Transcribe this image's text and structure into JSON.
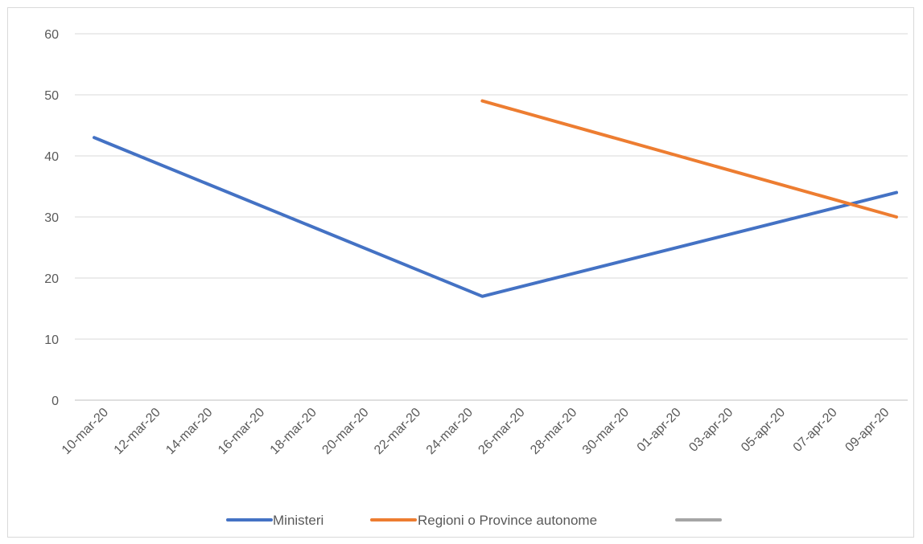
{
  "chart_data": {
    "type": "line",
    "x": [
      "2020-03-10",
      "2020-03-25",
      "2020-04-10"
    ],
    "x_tick_labels": [
      "10-mar-20",
      "12-mar-20",
      "14-mar-20",
      "16-mar-20",
      "18-mar-20",
      "20-mar-20",
      "22-mar-20",
      "24-mar-20",
      "26-mar-20",
      "28-mar-20",
      "30-mar-20",
      "01-apr-20",
      "03-apr-20",
      "05-apr-20",
      "07-apr-20",
      "09-apr-20"
    ],
    "y_tick_labels": [
      "0",
      "10",
      "20",
      "30",
      "40",
      "50",
      "60"
    ],
    "ylim": [
      0,
      60
    ],
    "grid": true,
    "legend_position": "bottom",
    "series": [
      {
        "name": "Ministeri",
        "color": "#4472c4",
        "values": [
          43,
          17,
          34
        ]
      },
      {
        "name": "Regioni o Province autonome",
        "color": "#ed7d31",
        "values": [
          null,
          49,
          30
        ]
      },
      {
        "name": "",
        "color": "#a5a5a5",
        "values": [
          null,
          null,
          null
        ]
      }
    ]
  }
}
